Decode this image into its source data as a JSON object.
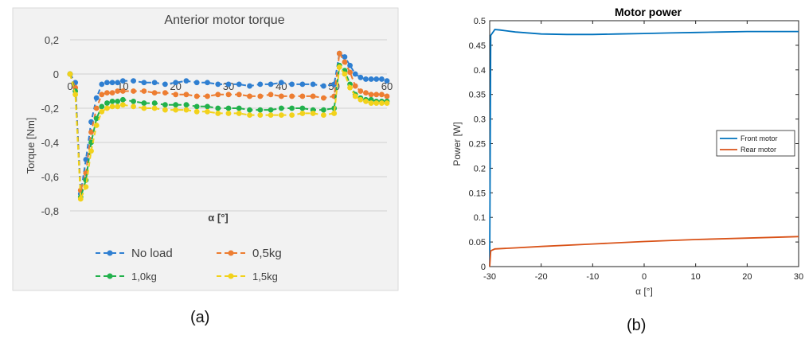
{
  "captions": {
    "a": "(a)",
    "b": "(b)"
  },
  "chart_data": [
    {
      "type": "line",
      "title": "Anterior motor torque",
      "xlabel": "α [°]",
      "ylabel": "Torque [Nm]",
      "xlim": [
        0,
        60
      ],
      "ylim": [
        -0.8,
        0.2
      ],
      "x_ticks": [
        "0",
        "10",
        "20",
        "30",
        "40",
        "50",
        "60"
      ],
      "y_ticks": [
        "0,2",
        "0",
        "-0,2",
        "-0,4",
        "-0,6",
        "-0,8"
      ],
      "grid": true,
      "legend_position": "bottom",
      "colors": {
        "No load": "#2f7fd1",
        "0,5kg": "#ed7d31",
        "1,0kg": "#22b14c",
        "1,5kg": "#f2d21b"
      },
      "series": [
        {
          "name": "No load",
          "x": [
            0,
            1,
            2,
            3,
            4,
            5,
            6,
            7,
            8,
            9,
            10,
            12,
            14,
            16,
            18,
            20,
            22,
            24,
            26,
            28,
            30,
            32,
            34,
            36,
            38,
            40,
            42,
            44,
            46,
            48,
            50,
            51,
            52,
            53,
            54,
            55,
            56,
            57,
            58,
            59,
            60
          ],
          "values": [
            0,
            -0.05,
            -0.7,
            -0.5,
            -0.28,
            -0.14,
            -0.06,
            -0.05,
            -0.05,
            -0.05,
            -0.04,
            -0.04,
            -0.05,
            -0.05,
            -0.06,
            -0.05,
            -0.04,
            -0.05,
            -0.05,
            -0.06,
            -0.06,
            -0.06,
            -0.07,
            -0.06,
            -0.06,
            -0.05,
            -0.06,
            -0.06,
            -0.06,
            -0.07,
            -0.06,
            0.12,
            0.1,
            0.05,
            0,
            -0.02,
            -0.03,
            -0.03,
            -0.03,
            -0.03,
            -0.04
          ]
        },
        {
          "name": "0,5kg",
          "x": [
            0,
            1,
            2,
            3,
            4,
            5,
            6,
            7,
            8,
            9,
            10,
            12,
            14,
            16,
            18,
            20,
            22,
            24,
            26,
            28,
            30,
            32,
            34,
            36,
            38,
            40,
            42,
            44,
            46,
            48,
            50,
            51,
            52,
            53,
            54,
            55,
            56,
            57,
            58,
            59,
            60
          ],
          "values": [
            0,
            -0.08,
            -0.68,
            -0.58,
            -0.34,
            -0.2,
            -0.12,
            -0.11,
            -0.11,
            -0.1,
            -0.1,
            -0.1,
            -0.1,
            -0.11,
            -0.11,
            -0.12,
            -0.12,
            -0.13,
            -0.13,
            -0.12,
            -0.12,
            -0.12,
            -0.13,
            -0.13,
            -0.12,
            -0.13,
            -0.13,
            -0.13,
            -0.13,
            -0.14,
            -0.13,
            0.12,
            0.07,
            0.01,
            -0.07,
            -0.1,
            -0.11,
            -0.12,
            -0.12,
            -0.12,
            -0.13
          ]
        },
        {
          "name": "1,0kg",
          "x": [
            0,
            1,
            2,
            3,
            4,
            5,
            6,
            7,
            8,
            9,
            10,
            12,
            14,
            16,
            18,
            20,
            22,
            24,
            26,
            28,
            30,
            32,
            34,
            36,
            38,
            40,
            42,
            44,
            46,
            48,
            50,
            51,
            52,
            53,
            54,
            55,
            56,
            57,
            58,
            59,
            60
          ],
          "values": [
            0,
            -0.1,
            -0.72,
            -0.62,
            -0.4,
            -0.26,
            -0.19,
            -0.17,
            -0.16,
            -0.16,
            -0.15,
            -0.16,
            -0.17,
            -0.17,
            -0.18,
            -0.18,
            -0.18,
            -0.19,
            -0.19,
            -0.2,
            -0.2,
            -0.2,
            -0.21,
            -0.21,
            -0.21,
            -0.2,
            -0.2,
            -0.2,
            -0.21,
            -0.21,
            -0.2,
            0.05,
            0.02,
            -0.06,
            -0.12,
            -0.14,
            -0.15,
            -0.15,
            -0.16,
            -0.16,
            -0.16
          ]
        },
        {
          "name": "1,5kg",
          "x": [
            0,
            1,
            2,
            3,
            4,
            5,
            6,
            7,
            8,
            9,
            10,
            12,
            14,
            16,
            18,
            20,
            22,
            24,
            26,
            28,
            30,
            32,
            34,
            36,
            38,
            40,
            42,
            44,
            46,
            48,
            50,
            51,
            52,
            53,
            54,
            55,
            56,
            57,
            58,
            59,
            60
          ],
          "values": [
            0,
            -0.12,
            -0.73,
            -0.66,
            -0.45,
            -0.3,
            -0.22,
            -0.2,
            -0.19,
            -0.19,
            -0.18,
            -0.19,
            -0.2,
            -0.2,
            -0.21,
            -0.21,
            -0.21,
            -0.22,
            -0.22,
            -0.23,
            -0.23,
            -0.23,
            -0.24,
            -0.24,
            -0.24,
            -0.24,
            -0.24,
            -0.23,
            -0.23,
            -0.24,
            -0.23,
            0.04,
            0,
            -0.08,
            -0.13,
            -0.15,
            -0.16,
            -0.17,
            -0.17,
            -0.17,
            -0.17
          ]
        }
      ]
    },
    {
      "type": "line",
      "title": "Motor power",
      "xlabel": "α [°]",
      "ylabel": "Power [W]",
      "xlim": [
        -30,
        30
      ],
      "ylim": [
        0,
        0.5
      ],
      "x_ticks": [
        "-30",
        "-20",
        "-10",
        "0",
        "10",
        "20",
        "30"
      ],
      "y_ticks": [
        "0",
        "0.05",
        "0.1",
        "0.15",
        "0.2",
        "0.25",
        "0.3",
        "0.35",
        "0.4",
        "0.45",
        "0.5"
      ],
      "grid": false,
      "legend_position": "right",
      "colors": {
        "Front motor": "#0072bd",
        "Rear motor": "#d95319"
      },
      "series": [
        {
          "name": "Front motor",
          "x": [
            -30,
            -29.8,
            -29,
            -28,
            -25,
            -20,
            -15,
            -10,
            -5,
            0,
            5,
            10,
            15,
            20,
            25,
            30
          ],
          "values": [
            0,
            0.47,
            0.482,
            0.481,
            0.477,
            0.473,
            0.472,
            0.472,
            0.473,
            0.474,
            0.475,
            0.476,
            0.477,
            0.478,
            0.478,
            0.478
          ]
        },
        {
          "name": "Rear motor",
          "x": [
            -30,
            -29.8,
            -29,
            -25,
            -20,
            -10,
            0,
            10,
            20,
            30
          ],
          "values": [
            0,
            0.032,
            0.036,
            0.038,
            0.041,
            0.046,
            0.051,
            0.055,
            0.058,
            0.061
          ]
        }
      ]
    }
  ]
}
